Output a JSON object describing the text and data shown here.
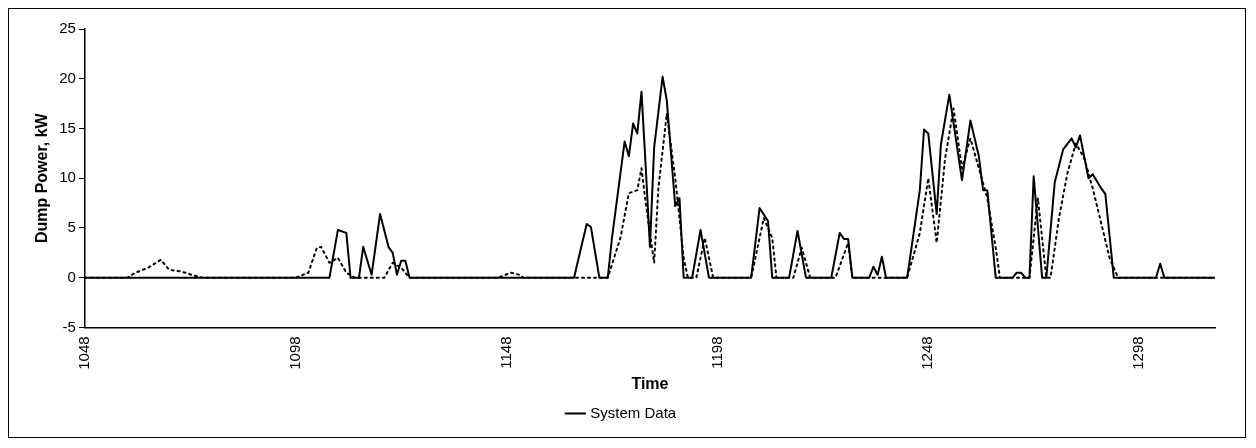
{
  "chart_data": {
    "type": "line",
    "xlabel": "Time",
    "ylabel": "Dump Power, kW",
    "xlim": [
      1048,
      1316
    ],
    "xticks": [
      1048,
      1098,
      1148,
      1198,
      1248,
      1298
    ],
    "ylim": [
      -5,
      25
    ],
    "yticks": [
      -5,
      0,
      5,
      10,
      15,
      20,
      25
    ],
    "grid": false,
    "legend": "bottom",
    "marker": "none",
    "series": [
      {
        "color": "#000000",
        "line_style": "solid",
        "x": [
          1048,
          1106,
          1108,
          1110,
          1111,
          1113,
          1114,
          1116,
          1118,
          1120,
          1121,
          1122,
          1123,
          1124,
          1125,
          1164,
          1167,
          1168,
          1170,
          1172,
          1173,
          1176,
          1177,
          1178,
          1179,
          1180,
          1181,
          1182,
          1183,
          1185,
          1186,
          1188,
          1189,
          1190,
          1192,
          1194,
          1196,
          1206,
          1208,
          1210,
          1211,
          1215,
          1217,
          1219,
          1225,
          1227,
          1228,
          1229,
          1230,
          1234,
          1235,
          1236,
          1237,
          1238,
          1243,
          1246,
          1247,
          1248,
          1250,
          1251,
          1253,
          1256,
          1258,
          1260,
          1261,
          1262,
          1264,
          1268,
          1269,
          1270,
          1271,
          1272,
          1273,
          1275,
          1276,
          1278,
          1280,
          1282,
          1283,
          1284,
          1286,
          1287,
          1289,
          1290,
          1292,
          1302,
          1303,
          1304,
          1316
        ],
        "values": [
          0,
          0,
          4.8,
          4.5,
          0,
          0,
          3.1,
          0.3,
          6.4,
          3.1,
          2.5,
          0.3,
          1.7,
          1.7,
          0,
          0,
          5.4,
          5.1,
          0,
          0,
          4,
          13.7,
          12.2,
          15.5,
          14.5,
          18.7,
          11.1,
          3.1,
          13.1,
          20.2,
          17.8,
          7.2,
          8,
          0,
          0,
          4.8,
          0,
          0,
          7,
          5.7,
          0,
          0,
          4.7,
          0,
          0,
          4.5,
          3.9,
          3.9,
          0,
          0,
          1.1,
          0.3,
          2.1,
          0,
          0,
          8.8,
          14.9,
          14.5,
          6.4,
          13.4,
          18.4,
          9.8,
          15.8,
          12.2,
          8.8,
          8.8,
          0,
          0,
          0.5,
          0.5,
          0,
          0,
          10.2,
          0,
          0,
          9.6,
          12.9,
          14,
          13.1,
          14.3,
          10,
          10.4,
          9,
          8.4,
          0,
          0,
          1.4,
          0,
          0
        ]
      },
      {
        "name": "System Data",
        "color": "#000000",
        "line_style": "dotted",
        "x": [
          1048,
          1058,
          1060,
          1063,
          1066,
          1068,
          1071,
          1074,
          1076,
          1098,
          1101,
          1103,
          1104,
          1106,
          1108,
          1110,
          1112,
          1119,
          1121,
          1123,
          1125,
          1146,
          1149,
          1151,
          1152,
          1172,
          1175,
          1177,
          1179,
          1180,
          1181,
          1183,
          1184,
          1186,
          1188,
          1190,
          1191,
          1193,
          1195,
          1197,
          1206,
          1209,
          1211,
          1212,
          1216,
          1218,
          1220,
          1226,
          1229,
          1230,
          1243,
          1246,
          1248,
          1250,
          1252,
          1254,
          1256,
          1258,
          1260,
          1262,
          1264,
          1265,
          1272,
          1274,
          1276,
          1277,
          1279,
          1281,
          1283,
          1285,
          1287,
          1289,
          1291,
          1293,
          1316
        ],
        "values": [
          0,
          0,
          0.5,
          1,
          1.8,
          0.8,
          0.6,
          0.2,
          0,
          0,
          0.5,
          3,
          3.1,
          1.5,
          2,
          0.5,
          0,
          0,
          1.5,
          1,
          0,
          0,
          0.5,
          0.3,
          0,
          0,
          4,
          8.5,
          8.8,
          11,
          7.5,
          1.5,
          9,
          16.5,
          10,
          2,
          0,
          0,
          4,
          0,
          0,
          6,
          4,
          0,
          0,
          3,
          0,
          0,
          3.5,
          0,
          0,
          4.5,
          10,
          3.5,
          12,
          17,
          11,
          14,
          11,
          8,
          3,
          0,
          0,
          8,
          0,
          0,
          6,
          10.5,
          13.5,
          12,
          9,
          5.5,
          2,
          0,
          0
        ]
      }
    ]
  }
}
